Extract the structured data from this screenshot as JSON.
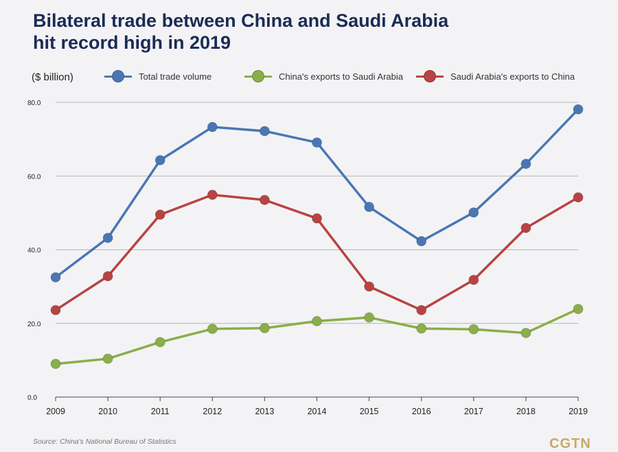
{
  "header": {
    "title_line1": "Bilateral trade between China and Saudi Arabia",
    "title_line2": "hit record high in 2019"
  },
  "footer": {
    "source": "Source: China's National Bureau of Statistics",
    "logo": "CGTN"
  },
  "colors": {
    "total": "#4a77b4",
    "china_exports": "#8aae4a",
    "saudi_exports": "#b94343",
    "grid": "#b5b5b5",
    "background": "#f3f3f5"
  },
  "chart_data": {
    "type": "line",
    "title": "Bilateral trade between China and Saudi Arabia hit record high in 2019",
    "ylabel": "($ billion)",
    "xlabel": "",
    "x": [
      "2009",
      "2010",
      "2011",
      "2012",
      "2013",
      "2014",
      "2015",
      "2016",
      "2017",
      "2018",
      "2019"
    ],
    "ylim": [
      0,
      80
    ],
    "yticks": [
      "0.0",
      "20.0",
      "40.0",
      "60.0",
      "80.0"
    ],
    "grid": true,
    "legend_position": "top",
    "series": [
      {
        "name": "Total trade volume",
        "color": "#4a77b4",
        "values": [
          32.5,
          43.2,
          64.3,
          73.3,
          72.2,
          69.1,
          51.6,
          42.3,
          50.1,
          63.3,
          78.1
        ]
      },
      {
        "name": "China's exports to Saudi Arabia",
        "color": "#8aae4a",
        "values": [
          9.0,
          10.4,
          14.9,
          18.5,
          18.7,
          20.6,
          21.6,
          18.6,
          18.4,
          17.4,
          23.9
        ]
      },
      {
        "name": "Saudi Arabia's exports to China",
        "color": "#b94343",
        "values": [
          23.6,
          32.8,
          49.5,
          54.9,
          53.5,
          48.5,
          30.0,
          23.6,
          31.8,
          45.9,
          54.2
        ]
      }
    ]
  }
}
